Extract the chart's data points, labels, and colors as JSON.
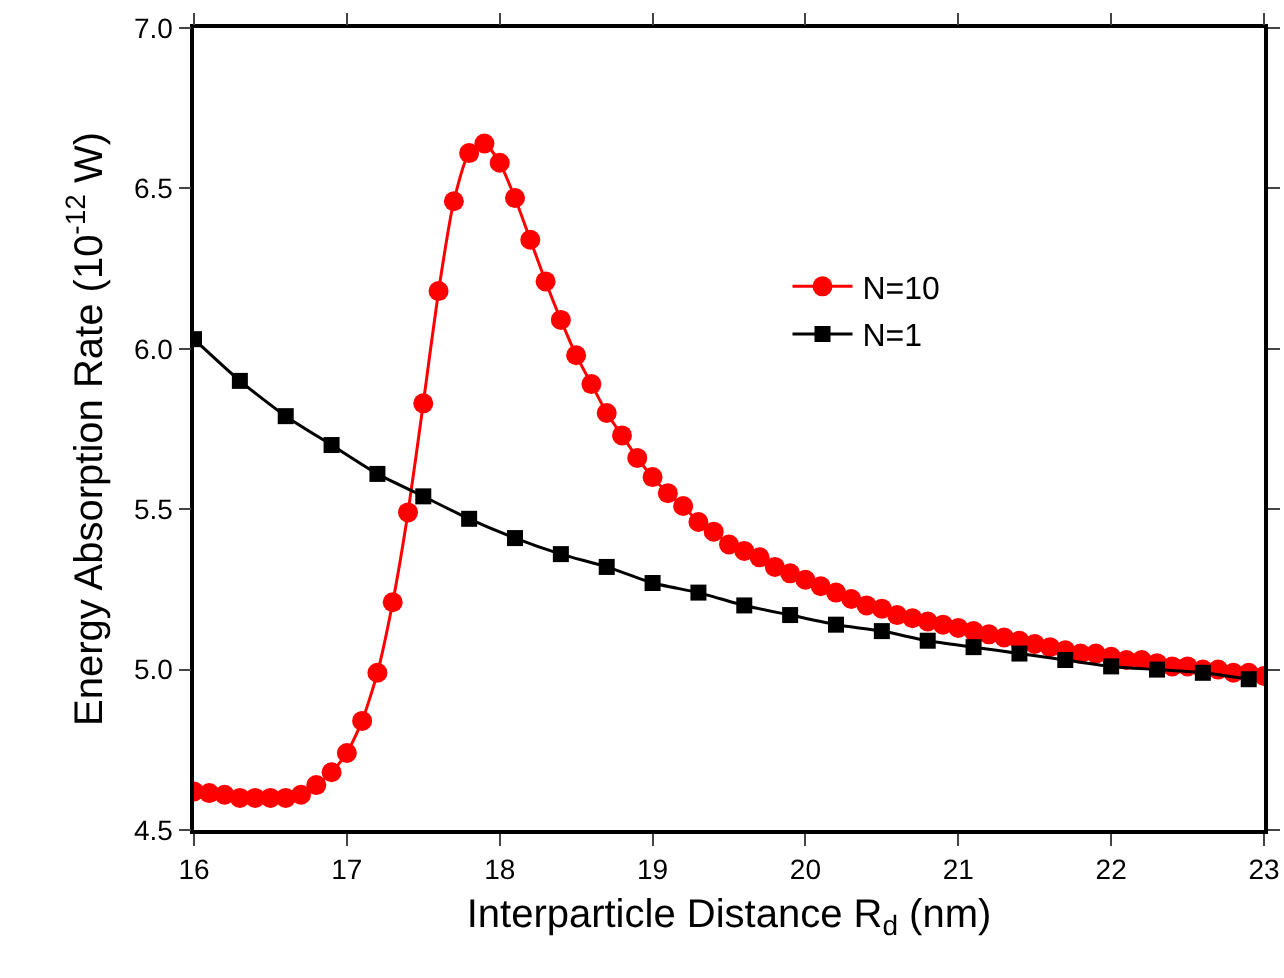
{
  "chart_data": {
    "type": "line",
    "xlabel": "Interparticle Distance R$_{d}$ (nm)",
    "ylabel": "Energy Absorption Rate (10$^{-12}$ W)",
    "xlim": [
      16,
      23
    ],
    "xticks": [
      16,
      17,
      18,
      19,
      20,
      21,
      22,
      23
    ],
    "ylim": [
      4.5,
      7.0
    ],
    "yticks": [
      {
        "value": 4.5,
        "label": "4.5"
      },
      {
        "value": 5,
        "label": "5.0"
      },
      {
        "value": 5.5,
        "label": "5.5"
      },
      {
        "value": 6,
        "label": "6.0"
      },
      {
        "value": 6.5,
        "label": "6.5"
      },
      {
        "value": 7,
        "label": "7.0"
      }
    ],
    "grid": false,
    "legend": "right",
    "series": [
      {
        "name": "N=10",
        "color": "#ff0000",
        "marker": "circle",
        "x": [
          16.0,
          16.1,
          16.2,
          16.3,
          16.4,
          16.5,
          16.6,
          16.7,
          16.8,
          16.9,
          17.0,
          17.1,
          17.2,
          17.3,
          17.4,
          17.5,
          17.6,
          17.7,
          17.8,
          17.9,
          18.0,
          18.1,
          18.2,
          18.3,
          18.4,
          18.5,
          18.6,
          18.7,
          18.8,
          18.9,
          19.0,
          19.1,
          19.2,
          19.3,
          19.4,
          19.5,
          19.6,
          19.7,
          19.8,
          19.9,
          20.0,
          20.1,
          20.2,
          20.3,
          20.4,
          20.5,
          20.6,
          20.7,
          20.8,
          20.9,
          21.0,
          21.1,
          21.2,
          21.3,
          21.4,
          21.5,
          21.6,
          21.7,
          21.8,
          21.9,
          22.0,
          22.1,
          22.2,
          22.3,
          22.4,
          22.5,
          22.6,
          22.7,
          22.8,
          22.9,
          23.0
        ],
        "values": [
          4.62,
          4.615,
          4.61,
          4.6,
          4.6,
          4.6,
          4.6,
          4.61,
          4.64,
          4.68,
          4.74,
          4.84,
          4.99,
          5.21,
          5.49,
          5.83,
          6.18,
          6.46,
          6.61,
          6.64,
          6.58,
          6.47,
          6.34,
          6.21,
          6.09,
          5.98,
          5.89,
          5.8,
          5.73,
          5.66,
          5.6,
          5.55,
          5.51,
          5.46,
          5.43,
          5.39,
          5.37,
          5.35,
          5.32,
          5.3,
          5.28,
          5.26,
          5.24,
          5.22,
          5.2,
          5.19,
          5.17,
          5.16,
          5.15,
          5.14,
          5.13,
          5.12,
          5.11,
          5.1,
          5.09,
          5.08,
          5.07,
          5.06,
          5.05,
          5.05,
          5.04,
          5.03,
          5.03,
          5.02,
          5.01,
          5.01,
          5.0,
          5.0,
          4.99,
          4.99,
          4.98
        ]
      },
      {
        "name": "N=1",
        "color": "#000000",
        "marker": "square",
        "x": [
          16.0,
          16.3,
          16.6,
          16.9,
          17.2,
          17.5,
          17.8,
          18.1,
          18.4,
          18.7,
          19.0,
          19.3,
          19.6,
          19.9,
          20.2,
          20.5,
          20.8,
          21.1,
          21.4,
          21.7,
          22.0,
          22.3,
          22.6,
          22.9
        ],
        "values": [
          6.03,
          5.9,
          5.79,
          5.7,
          5.61,
          5.54,
          5.47,
          5.41,
          5.36,
          5.32,
          5.27,
          5.24,
          5.2,
          5.17,
          5.14,
          5.12,
          5.09,
          5.07,
          5.05,
          5.03,
          5.01,
          5.0,
          4.99,
          4.97
        ]
      }
    ]
  }
}
